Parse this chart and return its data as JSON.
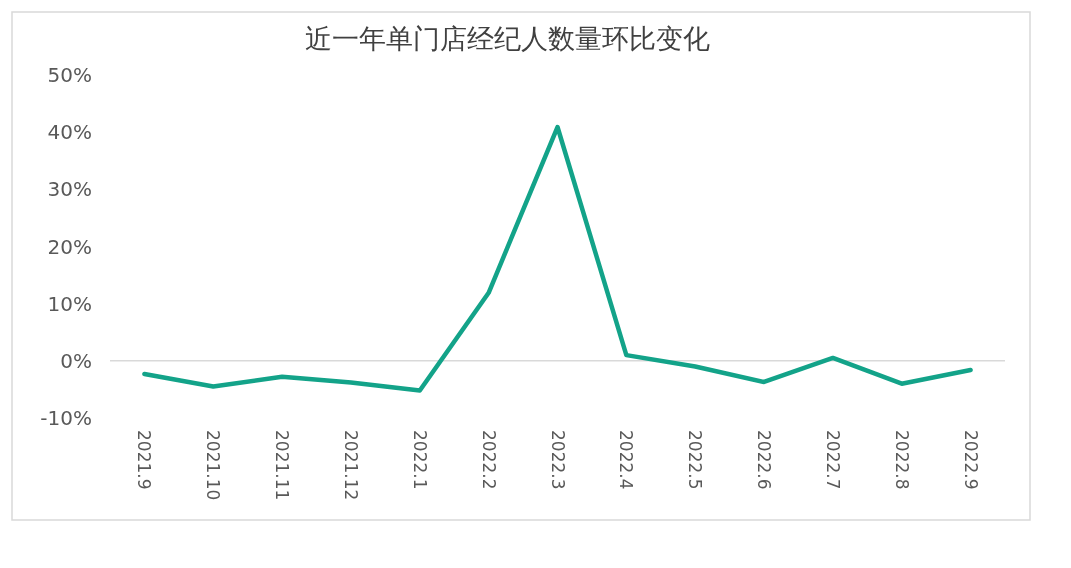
{
  "chart_data": {
    "type": "line",
    "title": "近一年单门店经纪人数量环比变化",
    "categories": [
      "2021.9",
      "2021.10",
      "2021.11",
      "2021.12",
      "2022.1",
      "2022.2",
      "2022.3",
      "2022.4",
      "2022.5",
      "2022.6",
      "2022.7",
      "2022.8",
      "2022.9"
    ],
    "series": [
      {
        "color": "#13a389",
        "values": [
          -2.3,
          -4.5,
          -2.8,
          -3.8,
          -5.2,
          11.9,
          40.9,
          1.0,
          -1.0,
          -3.7,
          0.5,
          -4.0,
          -1.6
        ]
      }
    ],
    "ylim": [
      -10,
      50
    ],
    "yticks": [
      {
        "value": -10,
        "label": "-10%"
      },
      {
        "value": 0,
        "label": "0%"
      },
      {
        "value": 10,
        "label": "10%"
      },
      {
        "value": 20,
        "label": "20%"
      },
      {
        "value": 30,
        "label": "30%"
      },
      {
        "value": 40,
        "label": "40%"
      },
      {
        "value": 50,
        "label": "50%"
      }
    ],
    "marker": "none",
    "line_style": "solid"
  }
}
